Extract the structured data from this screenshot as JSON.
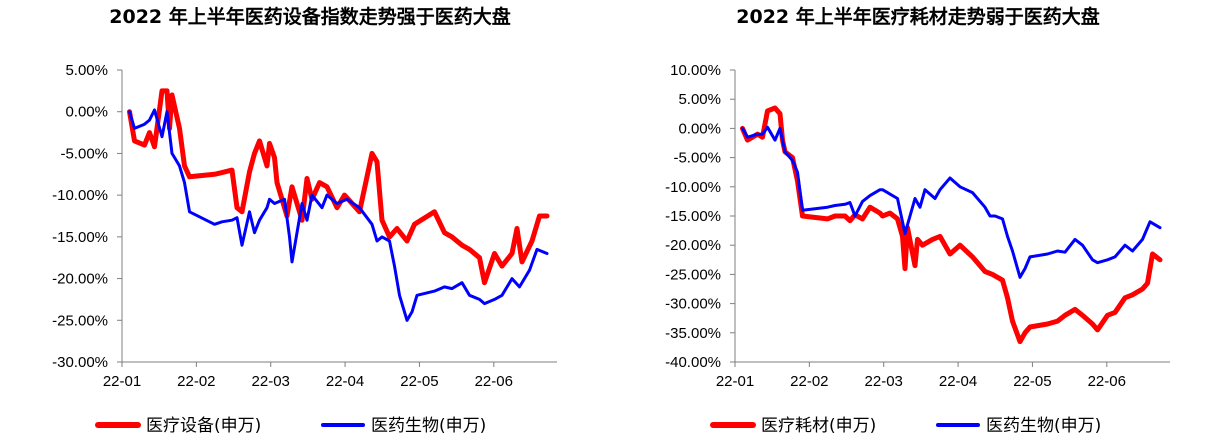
{
  "chart_data": [
    {
      "type": "line",
      "title": "2022 年上半年医药设备指数走势强于医药大盘",
      "x_ticks": [
        "22-01",
        "22-02",
        "22-03",
        "22-04",
        "22-05",
        "22-06"
      ],
      "y_ticks": [
        "5.00%",
        "0.00%",
        "-5.00%",
        "-10.00%",
        "-15.00%",
        "-20.00%",
        "-25.00%",
        "-30.00%"
      ],
      "ylim": [
        -30,
        5
      ],
      "xlim": [
        "2022-01-01",
        "2022-06-24"
      ],
      "legend_position": "bottom",
      "series": [
        {
          "name": "医疗设备(申万)",
          "color": "#ff0000",
          "points": [
            [
              "2022-01-04",
              0.0
            ],
            [
              "2022-01-06",
              -3.5
            ],
            [
              "2022-01-10",
              -4.0
            ],
            [
              "2022-01-12",
              -2.5
            ],
            [
              "2022-01-14",
              -4.2
            ],
            [
              "2022-01-17",
              2.5
            ],
            [
              "2022-01-19",
              2.5
            ],
            [
              "2022-01-20",
              -2.0
            ],
            [
              "2022-01-21",
              2.0
            ],
            [
              "2022-01-24",
              -2.0
            ],
            [
              "2022-01-26",
              -6.5
            ],
            [
              "2022-01-28",
              -7.8
            ],
            [
              "2022-02-07",
              -7.5
            ],
            [
              "2022-02-10",
              -7.3
            ],
            [
              "2022-02-14",
              -7.0
            ],
            [
              "2022-02-16",
              -11.5
            ],
            [
              "2022-02-18",
              -12.0
            ],
            [
              "2022-02-21",
              -7.2
            ],
            [
              "2022-02-23",
              -5.0
            ],
            [
              "2022-02-25",
              -3.5
            ],
            [
              "2022-02-28",
              -6.5
            ],
            [
              "2022-03-01",
              -3.8
            ],
            [
              "2022-03-03",
              -5.5
            ],
            [
              "2022-03-04",
              -8.5
            ],
            [
              "2022-03-08",
              -12.5
            ],
            [
              "2022-03-10",
              -9.0
            ],
            [
              "2022-03-14",
              -13.0
            ],
            [
              "2022-03-16",
              -8.0
            ],
            [
              "2022-03-18",
              -10.5
            ],
            [
              "2022-03-21",
              -8.5
            ],
            [
              "2022-03-24",
              -9.0
            ],
            [
              "2022-03-28",
              -11.5
            ],
            [
              "2022-03-31",
              -10.0
            ],
            [
              "2022-04-06",
              -12.0
            ],
            [
              "2022-04-11",
              -5.0
            ],
            [
              "2022-04-13",
              -6.0
            ],
            [
              "2022-04-15",
              -13.0
            ],
            [
              "2022-04-18",
              -15.0
            ],
            [
              "2022-04-21",
              -14.0
            ],
            [
              "2022-04-25",
              -15.5
            ],
            [
              "2022-04-28",
              -13.5
            ],
            [
              "2022-05-06",
              -12.0
            ],
            [
              "2022-05-10",
              -14.5
            ],
            [
              "2022-05-13",
              -15.0
            ],
            [
              "2022-05-17",
              -16.0
            ],
            [
              "2022-05-20",
              -16.5
            ],
            [
              "2022-05-24",
              -17.5
            ],
            [
              "2022-05-26",
              -20.5
            ],
            [
              "2022-05-30",
              -17.0
            ],
            [
              "2022-06-02",
              -18.5
            ],
            [
              "2022-06-06",
              -17.0
            ],
            [
              "2022-06-08",
              -14.0
            ],
            [
              "2022-06-10",
              -18.0
            ],
            [
              "2022-06-14",
              -15.5
            ],
            [
              "2022-06-17",
              -12.5
            ],
            [
              "2022-06-20",
              -12.5
            ]
          ]
        },
        {
          "name": "医药生物(申万)",
          "color": "#0000ff",
          "points": [
            [
              "2022-01-04",
              0.0
            ],
            [
              "2022-01-06",
              -2.0
            ],
            [
              "2022-01-10",
              -1.5
            ],
            [
              "2022-01-12",
              -1.0
            ],
            [
              "2022-01-14",
              0.2
            ],
            [
              "2022-01-17",
              -3.0
            ],
            [
              "2022-01-19",
              0.0
            ],
            [
              "2022-01-21",
              -5.0
            ],
            [
              "2022-01-24",
              -6.5
            ],
            [
              "2022-01-26",
              -8.5
            ],
            [
              "2022-01-28",
              -12.0
            ],
            [
              "2022-02-07",
              -13.5
            ],
            [
              "2022-02-10",
              -13.2
            ],
            [
              "2022-02-14",
              -13.0
            ],
            [
              "2022-02-16",
              -12.7
            ],
            [
              "2022-02-18",
              -16.0
            ],
            [
              "2022-02-21",
              -12.0
            ],
            [
              "2022-02-23",
              -14.5
            ],
            [
              "2022-02-25",
              -13.0
            ],
            [
              "2022-02-28",
              -11.5
            ],
            [
              "2022-03-01",
              -10.5
            ],
            [
              "2022-03-03",
              -11.0
            ],
            [
              "2022-03-07",
              -10.5
            ],
            [
              "2022-03-09",
              -15.0
            ],
            [
              "2022-03-10",
              -18.0
            ],
            [
              "2022-03-14",
              -11.0
            ],
            [
              "2022-03-16",
              -13.0
            ],
            [
              "2022-03-18",
              -10.0
            ],
            [
              "2022-03-22",
              -11.5
            ],
            [
              "2022-03-24",
              -10.0
            ],
            [
              "2022-03-28",
              -11.0
            ],
            [
              "2022-04-01",
              -10.5
            ],
            [
              "2022-04-06",
              -11.5
            ],
            [
              "2022-04-11",
              -13.5
            ],
            [
              "2022-04-13",
              -15.5
            ],
            [
              "2022-04-15",
              -15.0
            ],
            [
              "2022-04-18",
              -15.5
            ],
            [
              "2022-04-20",
              -18.5
            ],
            [
              "2022-04-22",
              -22.0
            ],
            [
              "2022-04-25",
              -25.0
            ],
            [
              "2022-04-27",
              -24.0
            ],
            [
              "2022-04-29",
              -22.0
            ],
            [
              "2022-05-06",
              -21.5
            ],
            [
              "2022-05-10",
              -21.0
            ],
            [
              "2022-05-13",
              -21.2
            ],
            [
              "2022-05-17",
              -20.5
            ],
            [
              "2022-05-20",
              -22.0
            ],
            [
              "2022-05-24",
              -22.5
            ],
            [
              "2022-05-26",
              -23.0
            ],
            [
              "2022-05-30",
              -22.5
            ],
            [
              "2022-06-02",
              -22.0
            ],
            [
              "2022-06-06",
              -20.0
            ],
            [
              "2022-06-09",
              -21.0
            ],
            [
              "2022-06-13",
              -19.0
            ],
            [
              "2022-06-16",
              -16.5
            ],
            [
              "2022-06-20",
              -17.0
            ]
          ]
        }
      ]
    },
    {
      "type": "line",
      "title": "2022 年上半年医疗耗材走势弱于医药大盘",
      "x_ticks": [
        "22-01",
        "22-02",
        "22-03",
        "22-04",
        "22-05",
        "22-06"
      ],
      "y_ticks": [
        "10.00%",
        "5.00%",
        "0.00%",
        "-5.00%",
        "-10.00%",
        "-15.00%",
        "-20.00%",
        "-25.00%",
        "-30.00%",
        "-35.00%",
        "-40.00%"
      ],
      "ylim": [
        -40,
        10
      ],
      "xlim": [
        "2022-01-01",
        "2022-06-24"
      ],
      "legend_position": "bottom",
      "series": [
        {
          "name": "医疗耗材(申万)",
          "color": "#ff0000",
          "points": [
            [
              "2022-01-04",
              0.0
            ],
            [
              "2022-01-06",
              -2.0
            ],
            [
              "2022-01-10",
              -1.0
            ],
            [
              "2022-01-12",
              -1.5
            ],
            [
              "2022-01-14",
              3.0
            ],
            [
              "2022-01-17",
              3.5
            ],
            [
              "2022-01-19",
              2.5
            ],
            [
              "2022-01-20",
              -2.0
            ],
            [
              "2022-01-21",
              -4.0
            ],
            [
              "2022-01-24",
              -5.0
            ],
            [
              "2022-01-26",
              -9.0
            ],
            [
              "2022-01-28",
              -15.0
            ],
            [
              "2022-02-07",
              -15.5
            ],
            [
              "2022-02-10",
              -15.0
            ],
            [
              "2022-02-14",
              -15.0
            ],
            [
              "2022-02-16",
              -15.8
            ],
            [
              "2022-02-18",
              -14.8
            ],
            [
              "2022-02-21",
              -15.5
            ],
            [
              "2022-02-24",
              -13.5
            ],
            [
              "2022-02-28",
              -14.5
            ],
            [
              "2022-03-01",
              -15.0
            ],
            [
              "2022-03-04",
              -14.5
            ],
            [
              "2022-03-07",
              -15.5
            ],
            [
              "2022-03-09",
              -18.5
            ],
            [
              "2022-03-10",
              -24.0
            ],
            [
              "2022-03-11",
              -17.0
            ],
            [
              "2022-03-14",
              -23.5
            ],
            [
              "2022-03-15",
              -19.0
            ],
            [
              "2022-03-17",
              -20.0
            ],
            [
              "2022-03-21",
              -19.0
            ],
            [
              "2022-03-24",
              -18.5
            ],
            [
              "2022-03-28",
              -21.5
            ],
            [
              "2022-04-01",
              -20.0
            ],
            [
              "2022-04-06",
              -22.0
            ],
            [
              "2022-04-11",
              -24.5
            ],
            [
              "2022-04-14",
              -25.0
            ],
            [
              "2022-04-18",
              -26.0
            ],
            [
              "2022-04-20",
              -29.0
            ],
            [
              "2022-04-22",
              -33.0
            ],
            [
              "2022-04-25",
              -36.5
            ],
            [
              "2022-04-27",
              -35.0
            ],
            [
              "2022-04-29",
              -34.0
            ],
            [
              "2022-05-06",
              -33.5
            ],
            [
              "2022-05-10",
              -33.0
            ],
            [
              "2022-05-13",
              -32.0
            ],
            [
              "2022-05-17",
              -31.0
            ],
            [
              "2022-05-20",
              -32.0
            ],
            [
              "2022-05-24",
              -33.5
            ],
            [
              "2022-05-26",
              -34.5
            ],
            [
              "2022-05-30",
              -32.0
            ],
            [
              "2022-06-02",
              -31.5
            ],
            [
              "2022-06-06",
              -29.0
            ],
            [
              "2022-06-09",
              -28.5
            ],
            [
              "2022-06-13",
              -27.5
            ],
            [
              "2022-06-15",
              -26.5
            ],
            [
              "2022-06-17",
              -21.5
            ],
            [
              "2022-06-20",
              -22.5
            ]
          ]
        },
        {
          "name": "医药生物(申万)",
          "color": "#0000ff",
          "points": [
            [
              "2022-01-04",
              0.0
            ],
            [
              "2022-01-06",
              -1.5
            ],
            [
              "2022-01-10",
              -1.0
            ],
            [
              "2022-01-12",
              -1.0
            ],
            [
              "2022-01-14",
              0.2
            ],
            [
              "2022-01-17",
              -2.0
            ],
            [
              "2022-01-19",
              0.0
            ],
            [
              "2022-01-21",
              -4.0
            ],
            [
              "2022-01-24",
              -5.5
            ],
            [
              "2022-01-26",
              -7.5
            ],
            [
              "2022-01-28",
              -14.0
            ],
            [
              "2022-02-07",
              -13.5
            ],
            [
              "2022-02-10",
              -13.2
            ],
            [
              "2022-02-14",
              -13.0
            ],
            [
              "2022-02-16",
              -12.7
            ],
            [
              "2022-02-18",
              -15.0
            ],
            [
              "2022-02-21",
              -12.5
            ],
            [
              "2022-02-24",
              -11.5
            ],
            [
              "2022-02-28",
              -10.5
            ],
            [
              "2022-03-01",
              -10.5
            ],
            [
              "2022-03-03",
              -11.0
            ],
            [
              "2022-03-07",
              -12.0
            ],
            [
              "2022-03-09",
              -16.0
            ],
            [
              "2022-03-10",
              -18.0
            ],
            [
              "2022-03-14",
              -12.0
            ],
            [
              "2022-03-16",
              -13.5
            ],
            [
              "2022-03-18",
              -10.5
            ],
            [
              "2022-03-22",
              -12.0
            ],
            [
              "2022-03-24",
              -10.5
            ],
            [
              "2022-03-28",
              -8.5
            ],
            [
              "2022-04-01",
              -10.0
            ],
            [
              "2022-04-06",
              -11.0
            ],
            [
              "2022-04-11",
              -13.5
            ],
            [
              "2022-04-13",
              -15.0
            ],
            [
              "2022-04-15",
              -15.0
            ],
            [
              "2022-04-18",
              -15.5
            ],
            [
              "2022-04-20",
              -18.5
            ],
            [
              "2022-04-22",
              -21.0
            ],
            [
              "2022-04-25",
              -25.5
            ],
            [
              "2022-04-27",
              -24.0
            ],
            [
              "2022-04-29",
              -22.0
            ],
            [
              "2022-05-06",
              -21.5
            ],
            [
              "2022-05-10",
              -21.0
            ],
            [
              "2022-05-13",
              -21.2
            ],
            [
              "2022-05-17",
              -19.0
            ],
            [
              "2022-05-20",
              -20.0
            ],
            [
              "2022-05-24",
              -22.5
            ],
            [
              "2022-05-26",
              -23.0
            ],
            [
              "2022-05-30",
              -22.5
            ],
            [
              "2022-06-02",
              -22.0
            ],
            [
              "2022-06-06",
              -20.0
            ],
            [
              "2022-06-09",
              -21.0
            ],
            [
              "2022-06-13",
              -19.0
            ],
            [
              "2022-06-16",
              -16.0
            ],
            [
              "2022-06-20",
              -17.0
            ]
          ]
        }
      ]
    }
  ]
}
